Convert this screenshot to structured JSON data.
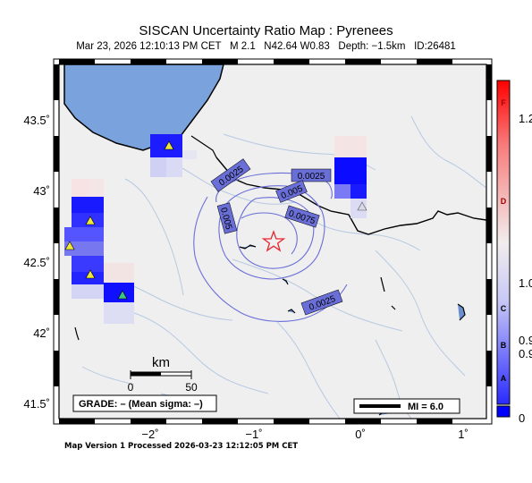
{
  "map": {
    "title": "SISCAN Uncertainty Ratio Map : Pyrenees",
    "subtitle": "Mar 23, 2026 12:10:13 PM CET   M 2.1   N42.64 W0.83   Depth: −1.5km   ID:26481",
    "footer": "Map Version 1 Processed 2026-03-23 12:12:05 PM CET",
    "lat_ticks": [
      "43.5˚",
      "43˚",
      "42.5˚",
      "42˚",
      "41.5˚"
    ],
    "lon_ticks": [
      "−2˚",
      "−1˚",
      "0˚",
      "1˚"
    ],
    "contour_labels": [
      "0.0025",
      "0.0025",
      "0.005",
      "0.005",
      "0.0075",
      "0.0025"
    ],
    "scale_bar": {
      "title": "km",
      "start": "0",
      "end": "50"
    },
    "grade_box": "GRADE: – (Mean sigma: –)",
    "mi_legend": "MI = 6.0",
    "epicenter_icon": "star-icon",
    "station_icon": "triangle-icon"
  },
  "colorbar": {
    "labels": [
      "F",
      "1.2",
      "D",
      "1.0",
      "C",
      "0.9",
      "B",
      "0.9",
      "A",
      "0"
    ],
    "colors": {
      "high": "#ff0000",
      "mid": "#f2eded",
      "low": "#0000ff"
    }
  },
  "colors": {
    "sea": "#7aa2dd",
    "land": "#efefef",
    "rivers": "#b7c9e2",
    "contours": "#6a6fd8",
    "epicenter": "#e8262d"
  }
}
